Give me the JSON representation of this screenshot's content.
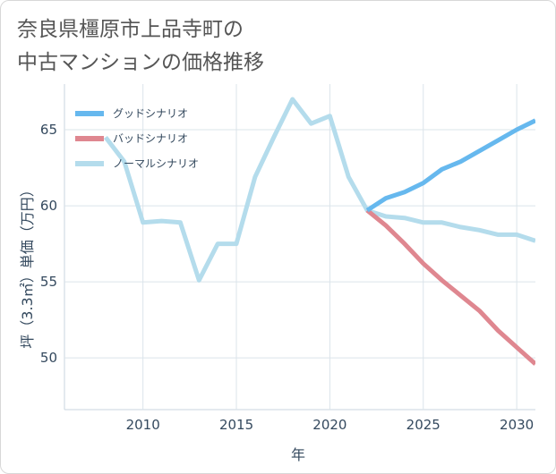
{
  "title_lines": [
    "奈良県橿原市上品寺町の",
    "中古マンションの価格推移"
  ],
  "chart_data": {
    "type": "line",
    "title": "奈良県橿原市上品寺町の中古マンションの価格推移",
    "xlabel": "年",
    "ylabel": "坪（3.3㎡）単価（万円）",
    "xlim": [
      2005.8,
      2031
    ],
    "ylim": [
      46.6,
      68
    ],
    "xticks": [
      2010,
      2015,
      2020,
      2025,
      2030
    ],
    "yticks": [
      50,
      55,
      60,
      65
    ],
    "grid": true,
    "legend_position": "top-left",
    "series": [
      {
        "name": "グッドシナリオ",
        "color": "#66b8ee",
        "x": [
          2022,
          2023,
          2024,
          2025,
          2026,
          2027,
          2028,
          2029,
          2030,
          2031
        ],
        "y": [
          59.7,
          60.5,
          60.9,
          61.5,
          62.4,
          62.9,
          63.6,
          64.3,
          65.0,
          65.6
        ]
      },
      {
        "name": "バッドシナリオ",
        "color": "#df8790",
        "x": [
          2022,
          2023,
          2024,
          2025,
          2026,
          2027,
          2028,
          2029,
          2030,
          2031
        ],
        "y": [
          59.7,
          58.7,
          57.5,
          56.2,
          55.1,
          54.1,
          53.1,
          51.8,
          50.7,
          49.6
        ]
      },
      {
        "name": "ノーマルシナリオ",
        "color": "#b4dcec",
        "x": [
          2008,
          2009,
          2010,
          2011,
          2012,
          2013,
          2014,
          2015,
          2016,
          2017,
          2018,
          2019,
          2020,
          2021,
          2022,
          2023,
          2024,
          2025,
          2026,
          2027,
          2028,
          2029,
          2030,
          2031
        ],
        "y": [
          64.5,
          62.9,
          58.9,
          59.0,
          58.9,
          55.1,
          57.5,
          57.5,
          61.9,
          64.5,
          67.0,
          65.4,
          65.9,
          61.9,
          59.7,
          59.3,
          59.2,
          58.9,
          58.9,
          58.6,
          58.4,
          58.1,
          58.1,
          57.7
        ]
      }
    ]
  }
}
